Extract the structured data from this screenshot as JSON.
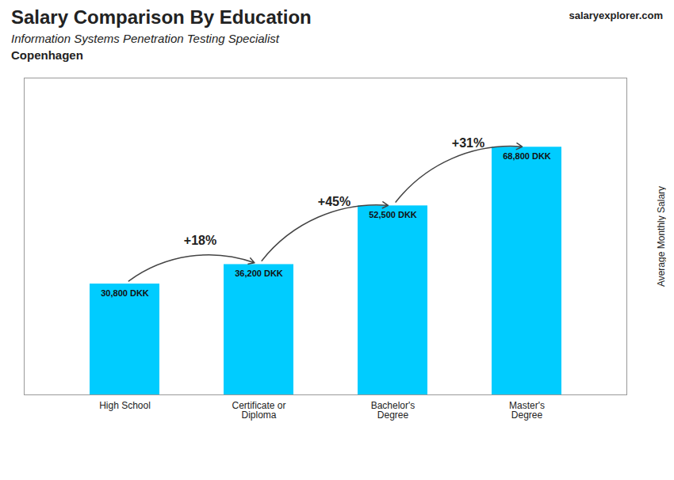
{
  "chart_data": {
    "type": "bar",
    "title": "Salary Comparison By Education",
    "subtitle": "Information Systems Penetration Testing Specialist",
    "city": "Copenhagen",
    "source": "salaryexplorer.com",
    "ylabel": "Average Monthly Salary",
    "categories": [
      "High School",
      "Certificate or\nDiploma",
      "Bachelor's\nDegree",
      "Master's\nDegree"
    ],
    "values": [
      30800,
      36200,
      52500,
      68800
    ],
    "value_labels": [
      "30,800 DKK",
      "36,200 DKK",
      "52,500 DKK",
      "68,800 DKK"
    ],
    "annotations": [
      "+18%",
      "+45%",
      "+31%"
    ],
    "color": "#00CCFF",
    "ylim": [
      0,
      88000
    ],
    "yticks": [],
    "data_labels": true,
    "tick_labels": "x",
    "grid": false
  }
}
